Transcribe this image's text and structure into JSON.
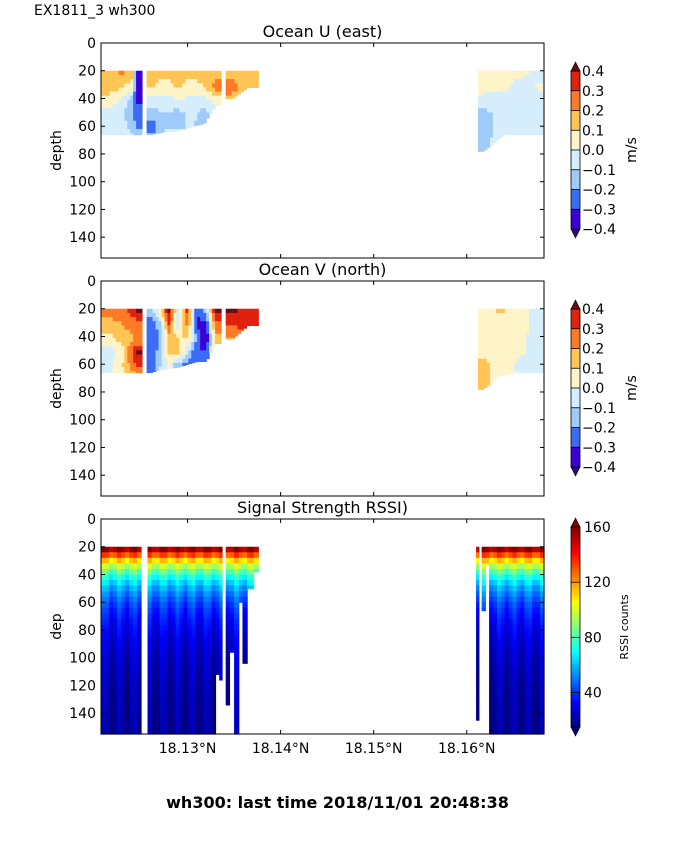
{
  "figure": {
    "suptitle": "EX1811_3 wh300",
    "footer": "wh300: last time 2018/11/01 20:48:38"
  },
  "chart_data": [
    {
      "type": "heatmap",
      "title": "Ocean U (east)",
      "ylabel": "depth",
      "xlabel": "",
      "ylim": [
        155,
        0
      ],
      "yticks": [
        0,
        20,
        40,
        60,
        80,
        100,
        120,
        140
      ],
      "xlim": [
        18.1207,
        18.1683
      ],
      "xticks": [
        18.13,
        18.14,
        18.15,
        18.16
      ],
      "xtick_labels": [],
      "colorbar": {
        "label": "m/s",
        "levels": [
          -0.4,
          -0.3,
          -0.2,
          -0.1,
          0.0,
          0.1,
          0.2,
          0.3,
          0.4
        ],
        "tick_labels": [
          "0.4",
          "0.3",
          "0.2",
          "0.1",
          "0.0",
          "−0.1",
          "−0.2",
          "−0.3",
          "−0.4"
        ],
        "extend": "both",
        "colors": [
          "#3a00d6",
          "#3c6cf5",
          "#9fcbfa",
          "#d6edfc",
          "#fff4c8",
          "#ffc454",
          "#ff7a26",
          "#e0210e"
        ],
        "under": "#2a0a8a",
        "over": "#6b0a1a"
      },
      "x_sections": [
        [
          18.1207,
          18.1251
        ],
        [
          18.1256,
          18.1336
        ],
        [
          18.1341,
          18.1376
        ],
        [
          18.1612,
          18.1683
        ]
      ],
      "samples": [
        {
          "x": 18.1215,
          "profile": [
            0.15,
            0.15,
            0.05,
            -0.05,
            -0.05,
            -0.05
          ],
          "bottom": 66
        },
        {
          "x": 18.1228,
          "profile": [
            0.22,
            0.12,
            0.0,
            -0.05,
            0.0,
            -0.05
          ],
          "bottom": 66
        },
        {
          "x": 18.124,
          "profile": [
            0.15,
            0.05,
            -0.15,
            -0.2,
            -0.15,
            -0.05
          ],
          "bottom": 66
        },
        {
          "x": 18.1246,
          "profile": [
            -0.35,
            -0.38,
            -0.32,
            -0.25,
            -0.2,
            -0.05
          ],
          "bottom": 66
        },
        {
          "x": 18.126,
          "profile": [
            0.15,
            0.12,
            -0.05,
            -0.15,
            -0.3,
            -0.1
          ],
          "bottom": 66
        },
        {
          "x": 18.1275,
          "profile": [
            0.12,
            0.05,
            -0.05,
            -0.1,
            -0.1,
            -0.05
          ],
          "bottom": 64
        },
        {
          "x": 18.129,
          "profile": [
            0.15,
            0.12,
            0.0,
            -0.15,
            -0.1,
            0.0
          ],
          "bottom": 63
        },
        {
          "x": 18.1305,
          "profile": [
            0.12,
            0.05,
            -0.05,
            -0.05,
            -0.1
          ],
          "bottom": 60
        },
        {
          "x": 18.1318,
          "profile": [
            0.15,
            0.1,
            -0.05,
            -0.15,
            -0.15
          ],
          "bottom": 58
        },
        {
          "x": 18.133,
          "profile": [
            0.15,
            0.25,
            0.05,
            -0.05
          ],
          "bottom": 45
        },
        {
          "x": 18.1348,
          "profile": [
            0.15,
            0.25,
            0.15,
            0.05
          ],
          "bottom": 40
        },
        {
          "x": 18.1365,
          "profile": [
            0.12,
            0.12,
            0.1
          ],
          "bottom": 32
        },
        {
          "x": 18.1618,
          "profile": [
            0.02,
            0.02,
            -0.02,
            -0.15,
            -0.15,
            -0.12
          ],
          "bottom": 78
        },
        {
          "x": 18.164,
          "profile": [
            0.02,
            0.03,
            -0.05,
            -0.05,
            -0.05,
            -0.05
          ],
          "bottom": 66
        },
        {
          "x": 18.1662,
          "profile": [
            0.02,
            -0.05,
            -0.02,
            -0.05,
            -0.05,
            -0.05
          ],
          "bottom": 66
        },
        {
          "x": 18.168,
          "profile": [
            -0.05,
            0.03,
            -0.05,
            -0.05,
            -0.05,
            -0.05
          ],
          "bottom": 66
        }
      ]
    },
    {
      "type": "heatmap",
      "title": "Ocean V (north)",
      "ylabel": "depth",
      "xlabel": "",
      "ylim": [
        155,
        0
      ],
      "yticks": [
        0,
        20,
        40,
        60,
        80,
        100,
        120,
        140
      ],
      "xlim": [
        18.1207,
        18.1683
      ],
      "xticks": [
        18.13,
        18.14,
        18.15,
        18.16
      ],
      "xtick_labels": [],
      "colorbar": {
        "label": "m/s",
        "levels": [
          -0.4,
          -0.3,
          -0.2,
          -0.1,
          0.0,
          0.1,
          0.2,
          0.3,
          0.4
        ],
        "tick_labels": [
          "0.4",
          "0.3",
          "0.2",
          "0.1",
          "0.0",
          "−0.1",
          "−0.2",
          "−0.3",
          "−0.4"
        ],
        "extend": "both",
        "colors": [
          "#3a00d6",
          "#3c6cf5",
          "#9fcbfa",
          "#d6edfc",
          "#fff4c8",
          "#ffc454",
          "#ff7a26",
          "#e0210e"
        ],
        "under": "#2a0a8a",
        "over": "#6b0a1a"
      },
      "x_sections": [
        [
          18.1207,
          18.1251
        ],
        [
          18.1256,
          18.1336
        ],
        [
          18.1341,
          18.1376
        ],
        [
          18.1612,
          18.1683
        ]
      ],
      "samples": [
        {
          "x": 18.1215,
          "profile": [
            0.25,
            0.15,
            0.05,
            -0.05,
            -0.05,
            -0.05
          ],
          "bottom": 66
        },
        {
          "x": 18.123,
          "profile": [
            0.25,
            0.2,
            0.15,
            0.05,
            0.1,
            0.05
          ],
          "bottom": 66
        },
        {
          "x": 18.1245,
          "profile": [
            0.4,
            0.25,
            0.2,
            0.42,
            0.3,
            0.1
          ],
          "bottom": 66
        },
        {
          "x": 18.126,
          "profile": [
            -0.15,
            -0.3,
            -0.3,
            -0.3,
            -0.3,
            -0.25
          ],
          "bottom": 66
        },
        {
          "x": 18.127,
          "profile": [
            0.05,
            -0.15,
            -0.2,
            -0.15,
            -0.1,
            -0.1
          ],
          "bottom": 64
        },
        {
          "x": 18.128,
          "profile": [
            0.42,
            0.3,
            0.15,
            0.1,
            0.0
          ],
          "bottom": 63
        },
        {
          "x": 18.129,
          "profile": [
            -0.05,
            -0.1,
            0.1,
            0.15,
            -0.2
          ],
          "bottom": 62
        },
        {
          "x": 18.13,
          "profile": [
            0.35,
            0.25,
            0.1,
            -0.1,
            -0.25
          ],
          "bottom": 60
        },
        {
          "x": 18.131,
          "profile": [
            -0.3,
            -0.35,
            -0.2,
            -0.3,
            -0.3
          ],
          "bottom": 58
        },
        {
          "x": 18.132,
          "profile": [
            -0.15,
            -0.35,
            -0.4,
            -0.3,
            -0.25
          ],
          "bottom": 58
        },
        {
          "x": 18.133,
          "profile": [
            0.42,
            0.25,
            0.15
          ],
          "bottom": 45
        },
        {
          "x": 18.1348,
          "profile": [
            0.42,
            0.3,
            0.2,
            0.15
          ],
          "bottom": 42
        },
        {
          "x": 18.1365,
          "profile": [
            0.35,
            0.35,
            0.25
          ],
          "bottom": 32
        },
        {
          "x": 18.1618,
          "profile": [
            0.05,
            0.05,
            0.05,
            0.05,
            0.15,
            0.15
          ],
          "bottom": 78
        },
        {
          "x": 18.1635,
          "profile": [
            0.12,
            0.05,
            0.05,
            0.05,
            0.05,
            0.05
          ],
          "bottom": 68
        },
        {
          "x": 18.1655,
          "profile": [
            0.05,
            0.05,
            0.02,
            0.02,
            -0.02,
            0.02
          ],
          "bottom": 66
        },
        {
          "x": 18.168,
          "profile": [
            -0.05,
            -0.05,
            -0.05,
            -0.05,
            -0.05,
            -0.05
          ],
          "bottom": 66
        }
      ]
    },
    {
      "type": "heatmap",
      "title": "Signal Strength RSSI)",
      "ylabel": "dep",
      "xlabel": "",
      "ylim": [
        155,
        0
      ],
      "yticks": [
        0,
        20,
        40,
        60,
        80,
        100,
        120,
        140
      ],
      "xlim": [
        18.1207,
        18.1683
      ],
      "xticks": [
        18.13,
        18.14,
        18.15,
        18.16
      ],
      "xtick_labels": [
        "18.13°N",
        "18.14°N",
        "18.15°N",
        "18.16°N"
      ],
      "colorbar": {
        "label": "RSSI counts",
        "range": [
          15,
          160
        ],
        "ticks": [
          40,
          80,
          120,
          160
        ],
        "tick_labels": [
          "40",
          "80",
          "120",
          "160"
        ],
        "extend": "both",
        "colormap": "jet"
      },
      "surface_value": 110,
      "columns": [
        {
          "x0": 18.1207,
          "x1": 18.125,
          "bottom": 155
        },
        {
          "x0": 18.1257,
          "x1": 18.133,
          "bottom": 155
        },
        {
          "x0": 18.133,
          "x1": 18.1334,
          "bottom": 112
        },
        {
          "x0": 18.1334,
          "x1": 18.1337,
          "bottom": 116
        },
        {
          "x0": 18.1341,
          "x1": 18.1345,
          "bottom": 134
        },
        {
          "x0": 18.1345,
          "x1": 18.135,
          "bottom": 96
        },
        {
          "x0": 18.135,
          "x1": 18.1355,
          "bottom": 155
        },
        {
          "x0": 18.1355,
          "x1": 18.1359,
          "bottom": 60
        },
        {
          "x0": 18.1359,
          "x1": 18.1364,
          "bottom": 104
        },
        {
          "x0": 18.1364,
          "x1": 18.1371,
          "bottom": 50
        },
        {
          "x0": 18.1371,
          "x1": 18.1376,
          "bottom": 38
        },
        {
          "x0": 18.161,
          "x1": 18.1613,
          "bottom": 145
        },
        {
          "x0": 18.1616,
          "x1": 18.162,
          "bottom": 66
        },
        {
          "x0": 18.162,
          "x1": 18.1624,
          "bottom": 33
        },
        {
          "x0": 18.1624,
          "x1": 18.1683,
          "bottom": 155
        }
      ]
    }
  ]
}
